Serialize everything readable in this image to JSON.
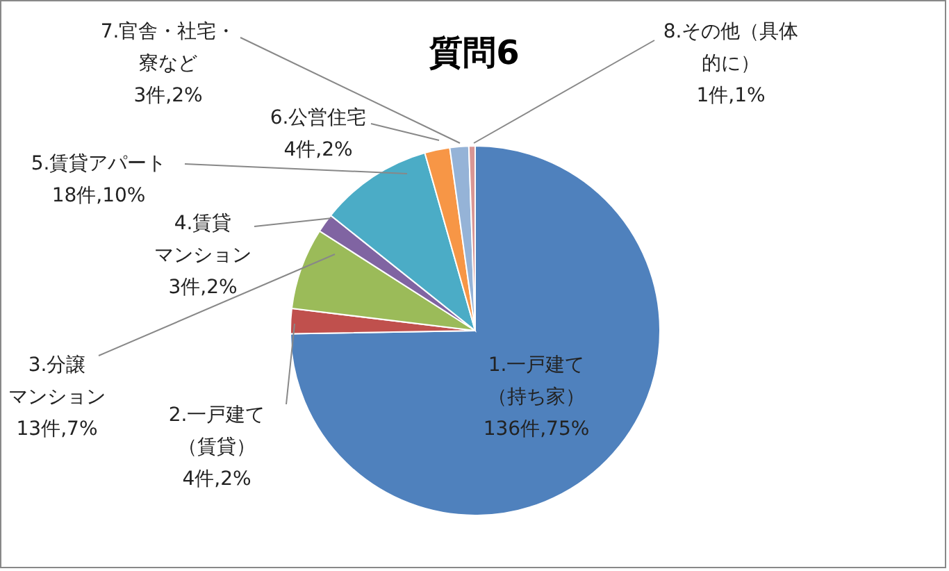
{
  "chart_data": {
    "type": "pie",
    "title": "質問6",
    "categories": [
      "1.一戸建て（持ち家）",
      "2.一戸建て（賃貸）",
      "3.分譲マンション",
      "4.賃貸マンション",
      "5.賃貸アパート",
      "6.公営住宅",
      "7.官舎・社宅・寮など",
      "8.その他（具体的に）"
    ],
    "values": [
      136,
      4,
      13,
      3,
      18,
      4,
      3,
      1
    ],
    "value_labels": [
      "136件,75%",
      "4件,2%",
      "13件,7%",
      "3件,2%",
      "18件,10%",
      "4件,2%",
      "3件,2%",
      "1件,1%"
    ],
    "colors": [
      "#4f81bd",
      "#c0504d",
      "#9bbb59",
      "#8064a2",
      "#4bacc6",
      "#f79646",
      "#95b3d7",
      "#d99694"
    ],
    "legend": false
  }
}
